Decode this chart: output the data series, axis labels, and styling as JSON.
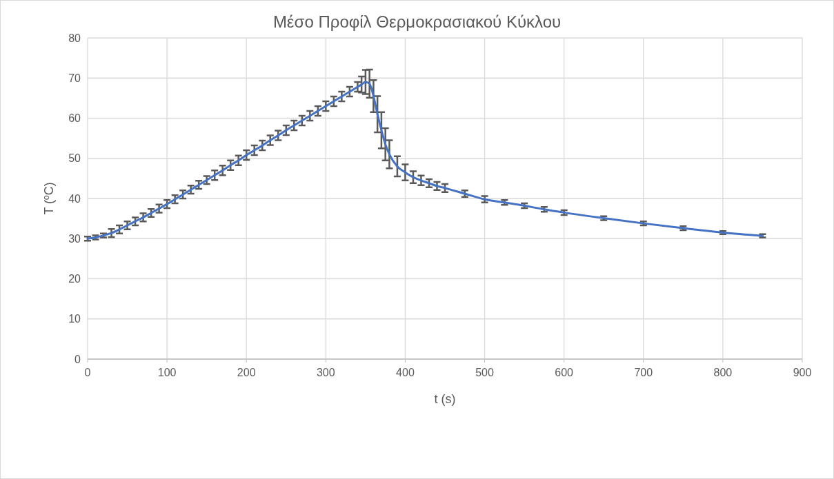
{
  "chart_data": {
    "type": "line",
    "title": "Μέσο Προφίλ Θερμοκρασιακού Κύκλου",
    "xlabel": "t (s)",
    "ylabel": "T (ºC)",
    "xlim": [
      0,
      900
    ],
    "xticks": [
      0,
      100,
      200,
      300,
      400,
      500,
      600,
      700,
      800,
      900
    ],
    "ylim": [
      0,
      80
    ],
    "yticks": [
      0,
      10,
      20,
      30,
      40,
      50,
      60,
      70,
      80
    ],
    "grid": true,
    "line_style": "solid",
    "x": [
      0,
      10,
      20,
      30,
      40,
      50,
      60,
      70,
      80,
      90,
      100,
      110,
      120,
      130,
      140,
      150,
      160,
      170,
      180,
      190,
      200,
      210,
      220,
      230,
      240,
      250,
      260,
      270,
      280,
      290,
      300,
      310,
      320,
      330,
      340,
      345,
      350,
      355,
      360,
      365,
      370,
      375,
      380,
      390,
      400,
      410,
      420,
      430,
      440,
      450,
      475,
      500,
      525,
      550,
      575,
      600,
      650,
      700,
      750,
      800,
      850
    ],
    "series": [
      {
        "color": "#4472c4",
        "values": [
          30,
          30.3,
          30.8,
          31.4,
          32.3,
          33.3,
          34.3,
          35.3,
          36.4,
          37.5,
          38.6,
          39.8,
          41,
          42.2,
          43.4,
          44.6,
          45.8,
          47,
          48.3,
          49.5,
          50.8,
          52,
          53.2,
          54.5,
          55.7,
          57,
          58.2,
          59.4,
          60.6,
          61.8,
          63,
          64.2,
          65.4,
          66.6,
          67.8,
          68.4,
          69,
          68.6,
          65.5,
          61,
          57,
          53.5,
          51,
          48,
          46.5,
          45.3,
          44.5,
          43.8,
          43.1,
          42.6,
          41.2,
          39.8,
          39,
          38.2,
          37.3,
          36.5,
          35.1,
          33.8,
          32.6,
          31.5,
          30.7
        ],
        "errors": [
          0.5,
          0.5,
          0.5,
          1,
          1,
          1,
          1,
          1,
          1,
          1,
          1,
          1,
          1,
          1,
          1,
          1,
          1.2,
          1.2,
          1.2,
          1.2,
          1.2,
          1.2,
          1.2,
          1.2,
          1.2,
          1.2,
          1.2,
          1.2,
          1.2,
          1.2,
          1.2,
          1.2,
          1.2,
          1.2,
          1.2,
          2,
          3,
          3.5,
          4,
          4.5,
          4.5,
          4,
          3.5,
          2.5,
          2,
          1.5,
          1.2,
          1,
          1,
          1,
          0.8,
          0.8,
          0.6,
          0.6,
          0.6,
          0.6,
          0.5,
          0.5,
          0.5,
          0.4,
          0.4
        ]
      }
    ]
  }
}
